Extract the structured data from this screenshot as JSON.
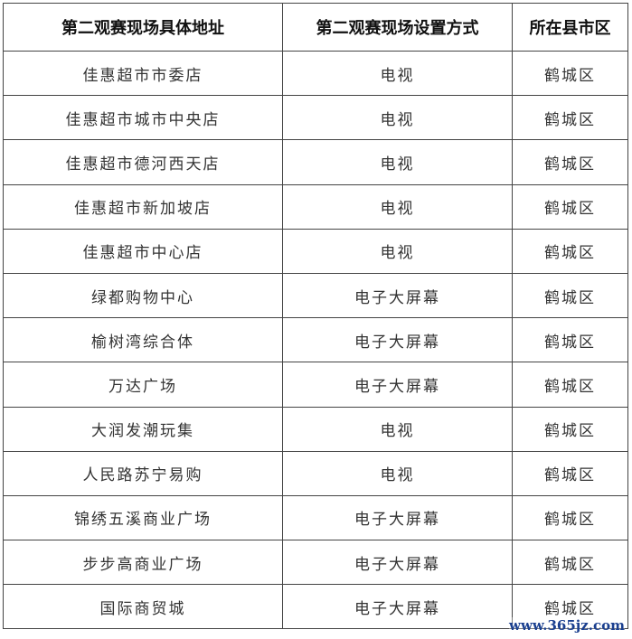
{
  "table": {
    "headers": [
      "第二观赛现场具体地址",
      "第二观赛现场设置方式",
      "所在县市区"
    ],
    "rows": [
      [
        "佳惠超市市委店",
        "电视",
        "鹤城区"
      ],
      [
        "佳惠超市城市中央店",
        "电视",
        "鹤城区"
      ],
      [
        "佳惠超市德河西天店",
        "电视",
        "鹤城区"
      ],
      [
        "佳惠超市新加坡店",
        "电视",
        "鹤城区"
      ],
      [
        "佳惠超市中心店",
        "电视",
        "鹤城区"
      ],
      [
        "绿都购物中心",
        "电子大屏幕",
        "鹤城区"
      ],
      [
        "榆树湾综合体",
        "电子大屏幕",
        "鹤城区"
      ],
      [
        "万达广场",
        "电子大屏幕",
        "鹤城区"
      ],
      [
        "大润发潮玩集",
        "电视",
        "鹤城区"
      ],
      [
        "人民路苏宁易购",
        "电视",
        "鹤城区"
      ],
      [
        "锦绣五溪商业广场",
        "电子大屏幕",
        "鹤城区"
      ],
      [
        "步步高商业广场",
        "电子大屏幕",
        "鹤城区"
      ],
      [
        "国际商贸城",
        "电子大屏幕",
        "鹤城区"
      ]
    ]
  },
  "watermark": "www.365jz.com"
}
